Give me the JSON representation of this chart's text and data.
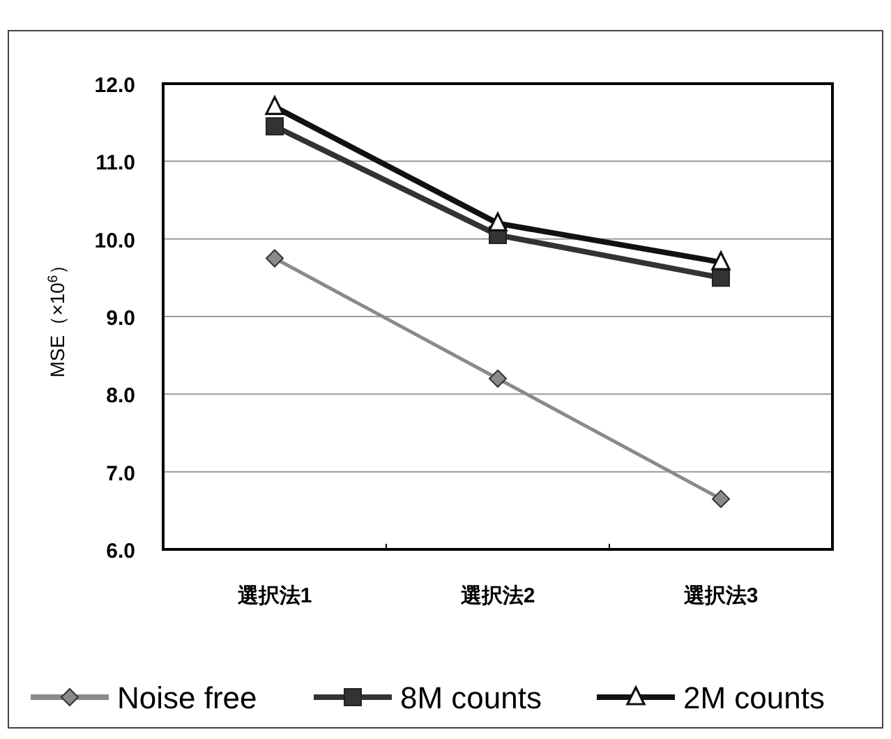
{
  "chart_data": {
    "type": "line",
    "ylabel": "MSE（×10$^{6}$）",
    "categories": [
      "選択法1",
      "選択法2",
      "選択法3"
    ],
    "ylim": [
      6,
      12
    ],
    "yticks": [
      {
        "value": 6,
        "label": "6.0"
      },
      {
        "value": 7,
        "label": "7.0"
      },
      {
        "value": 8,
        "label": "8.0"
      },
      {
        "value": 9,
        "label": "9.0"
      },
      {
        "value": 10,
        "label": "10.0"
      },
      {
        "value": 11,
        "label": "11.0"
      },
      {
        "value": 12,
        "label": "12.0"
      }
    ],
    "grid": "y",
    "legend": "bottom",
    "series": [
      {
        "name": "Noise free",
        "color": "#8a8a8a",
        "marker": "diamond",
        "values": [
          9.75,
          8.2,
          6.65
        ]
      },
      {
        "name": "8M counts",
        "color": "#333333",
        "marker": "square",
        "values": [
          11.45,
          10.05,
          9.5
        ]
      },
      {
        "name": "2M counts",
        "color": "#111111",
        "marker": "triangle",
        "values": [
          11.7,
          10.2,
          9.7
        ]
      }
    ]
  }
}
